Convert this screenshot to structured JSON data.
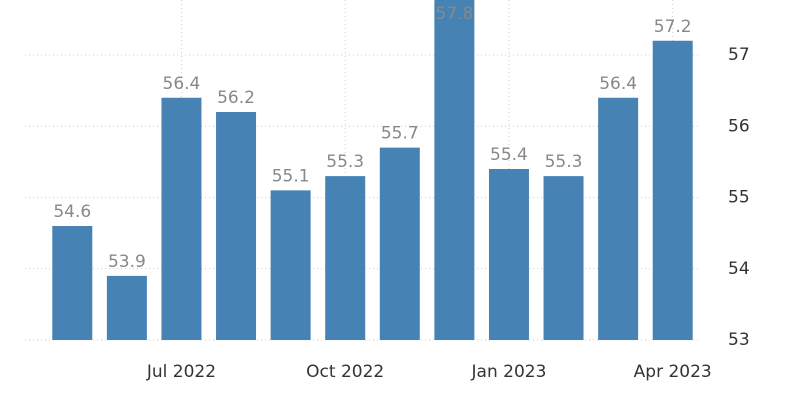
{
  "chart_data": {
    "type": "bar",
    "categories": [
      null,
      null,
      "Jul 2022",
      null,
      null,
      "Oct 2022",
      null,
      null,
      "Jan 2023",
      null,
      null,
      "Apr 2023"
    ],
    "values": [
      54.6,
      53.9,
      56.4,
      56.2,
      55.1,
      55.3,
      55.7,
      57.8,
      55.4,
      55.3,
      56.4,
      57.2
    ],
    "color": "#4682b4",
    "ylim": [
      53,
      57.8
    ],
    "yticks": [
      53,
      54,
      55,
      56,
      57
    ],
    "grid": true
  }
}
